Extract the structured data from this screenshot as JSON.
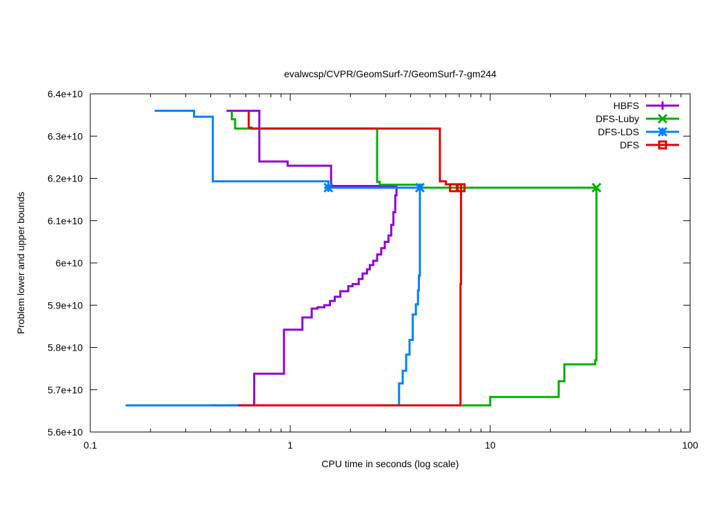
{
  "chart_data": {
    "type": "line",
    "title": "evalwcsp/CVPR/GeomSurf-7/GeomSurf-7-gm244",
    "xlabel": "CPU time in seconds (log scale)",
    "ylabel": "Problem lower and upper bounds",
    "x_scale": "log",
    "xlim": [
      0.1,
      100
    ],
    "ylim": [
      56000000000,
      64000000000
    ],
    "x_ticks": [
      {
        "value": 0.1,
        "label": "0.1"
      },
      {
        "value": 1,
        "label": "1"
      },
      {
        "value": 10,
        "label": "10"
      },
      {
        "value": 100,
        "label": "100"
      }
    ],
    "y_ticks": [
      {
        "value": 56000000000,
        "label": "5.6e+10"
      },
      {
        "value": 57000000000,
        "label": "5.7e+10"
      },
      {
        "value": 58000000000,
        "label": "5.8e+10"
      },
      {
        "value": 59000000000,
        "label": "5.9e+10"
      },
      {
        "value": 60000000000,
        "label": "6e+10"
      },
      {
        "value": 61000000000,
        "label": "6.1e+10"
      },
      {
        "value": 62000000000,
        "label": "6.2e+10"
      },
      {
        "value": 63000000000,
        "label": "6.3e+10"
      },
      {
        "value": 64000000000,
        "label": "6.4e+10"
      }
    ],
    "legend_position": "top-right",
    "series": [
      {
        "name": "HBFS",
        "color": "#9400d3",
        "marker": "plus",
        "upper": [
          [
            0.48,
            63600000000
          ],
          [
            0.7,
            63600000000
          ],
          [
            0.7,
            62400000000
          ],
          [
            0.97,
            62400000000
          ],
          [
            0.97,
            62300000000
          ],
          [
            1.6,
            62300000000
          ],
          [
            1.6,
            61820000000
          ],
          [
            3.4,
            61820000000
          ]
        ],
        "lower": [
          [
            0.4,
            56630000000
          ],
          [
            0.66,
            56630000000
          ],
          [
            0.66,
            57380000000
          ],
          [
            0.93,
            57380000000
          ],
          [
            0.93,
            58420000000
          ],
          [
            1.15,
            58420000000
          ],
          [
            1.15,
            58710000000
          ],
          [
            1.28,
            58710000000
          ],
          [
            1.28,
            58920000000
          ],
          [
            1.37,
            58920000000
          ],
          [
            1.37,
            58950000000
          ],
          [
            1.48,
            58950000000
          ],
          [
            1.48,
            59000000000
          ],
          [
            1.58,
            59000000000
          ],
          [
            1.58,
            59100000000
          ],
          [
            1.67,
            59100000000
          ],
          [
            1.67,
            59200000000
          ],
          [
            1.78,
            59200000000
          ],
          [
            1.78,
            59330000000
          ],
          [
            1.95,
            59330000000
          ],
          [
            1.95,
            59450000000
          ],
          [
            2.05,
            59450000000
          ],
          [
            2.05,
            59500000000
          ],
          [
            2.2,
            59500000000
          ],
          [
            2.2,
            59620000000
          ],
          [
            2.3,
            59620000000
          ],
          [
            2.3,
            59750000000
          ],
          [
            2.42,
            59750000000
          ],
          [
            2.42,
            59850000000
          ],
          [
            2.5,
            59850000000
          ],
          [
            2.5,
            59950000000
          ],
          [
            2.6,
            59950000000
          ],
          [
            2.6,
            60050000000
          ],
          [
            2.72,
            60050000000
          ],
          [
            2.72,
            60200000000
          ],
          [
            2.85,
            60200000000
          ],
          [
            2.85,
            60350000000
          ],
          [
            2.97,
            60350000000
          ],
          [
            2.97,
            60500000000
          ],
          [
            3.1,
            60500000000
          ],
          [
            3.1,
            60650000000
          ],
          [
            3.2,
            60650000000
          ],
          [
            3.2,
            60900000000
          ],
          [
            3.28,
            60900000000
          ],
          [
            3.28,
            61200000000
          ],
          [
            3.35,
            61200000000
          ],
          [
            3.35,
            61600000000
          ],
          [
            3.4,
            61600000000
          ],
          [
            3.4,
            61820000000
          ]
        ]
      },
      {
        "name": "DFS-Luby",
        "color": "#00b000",
        "marker": "cross",
        "upper": [
          [
            0.51,
            63600000000
          ],
          [
            0.51,
            63400000000
          ],
          [
            0.53,
            63400000000
          ],
          [
            0.53,
            63180000000
          ],
          [
            2.72,
            63180000000
          ],
          [
            2.72,
            61920000000
          ],
          [
            2.8,
            61920000000
          ],
          [
            2.8,
            61850000000
          ],
          [
            4.5,
            61850000000
          ],
          [
            4.5,
            61780000000
          ],
          [
            34.0,
            61780000000
          ]
        ],
        "lower": [
          [
            7.2,
            56630000000
          ],
          [
            10.0,
            56630000000
          ],
          [
            10.0,
            56830000000
          ],
          [
            22.0,
            56830000000
          ],
          [
            22.0,
            57200000000
          ],
          [
            23.5,
            57200000000
          ],
          [
            23.5,
            57600000000
          ],
          [
            33.5,
            57600000000
          ],
          [
            33.5,
            57700000000
          ],
          [
            34.0,
            57700000000
          ],
          [
            34.0,
            61780000000
          ]
        ],
        "marker_points": [
          [
            34.0,
            61780000000
          ]
        ]
      },
      {
        "name": "DFS-LDS",
        "color": "#0080ff",
        "marker": "star",
        "upper": [
          [
            0.21,
            63600000000
          ],
          [
            0.33,
            63600000000
          ],
          [
            0.33,
            63460000000
          ],
          [
            0.41,
            63460000000
          ],
          [
            0.41,
            61930000000
          ],
          [
            1.55,
            61930000000
          ],
          [
            1.55,
            61780000000
          ],
          [
            4.45,
            61780000000
          ]
        ],
        "lower": [
          [
            0.15,
            56630000000
          ],
          [
            3.5,
            56630000000
          ],
          [
            3.5,
            57150000000
          ],
          [
            3.65,
            57150000000
          ],
          [
            3.65,
            57450000000
          ],
          [
            3.8,
            57450000000
          ],
          [
            3.8,
            57830000000
          ],
          [
            3.95,
            57830000000
          ],
          [
            3.95,
            58180000000
          ],
          [
            4.1,
            58180000000
          ],
          [
            4.1,
            58780000000
          ],
          [
            4.25,
            58780000000
          ],
          [
            4.25,
            59020000000
          ],
          [
            4.35,
            59020000000
          ],
          [
            4.35,
            59350000000
          ],
          [
            4.4,
            59350000000
          ],
          [
            4.4,
            59700000000
          ],
          [
            4.45,
            59700000000
          ],
          [
            4.45,
            61780000000
          ]
        ],
        "marker_points": [
          [
            1.55,
            61780000000
          ],
          [
            4.45,
            61780000000
          ]
        ]
      },
      {
        "name": "DFS",
        "color": "#e00000",
        "marker": "square",
        "upper": [
          [
            0.62,
            63600000000
          ],
          [
            0.62,
            63200000000
          ],
          [
            0.64,
            63200000000
          ],
          [
            0.64,
            63180000000
          ],
          [
            5.6,
            63180000000
          ],
          [
            5.6,
            61930000000
          ],
          [
            6.0,
            61930000000
          ],
          [
            6.0,
            61860000000
          ],
          [
            7.15,
            61860000000
          ],
          [
            7.15,
            61780000000
          ]
        ],
        "lower": [
          [
            0.55,
            56630000000
          ],
          [
            7.1,
            56630000000
          ],
          [
            7.1,
            59500000000
          ],
          [
            7.15,
            59500000000
          ],
          [
            7.15,
            61780000000
          ]
        ],
        "marker_points": [
          [
            6.55,
            61780000000
          ],
          [
            7.15,
            61780000000
          ]
        ]
      }
    ]
  }
}
